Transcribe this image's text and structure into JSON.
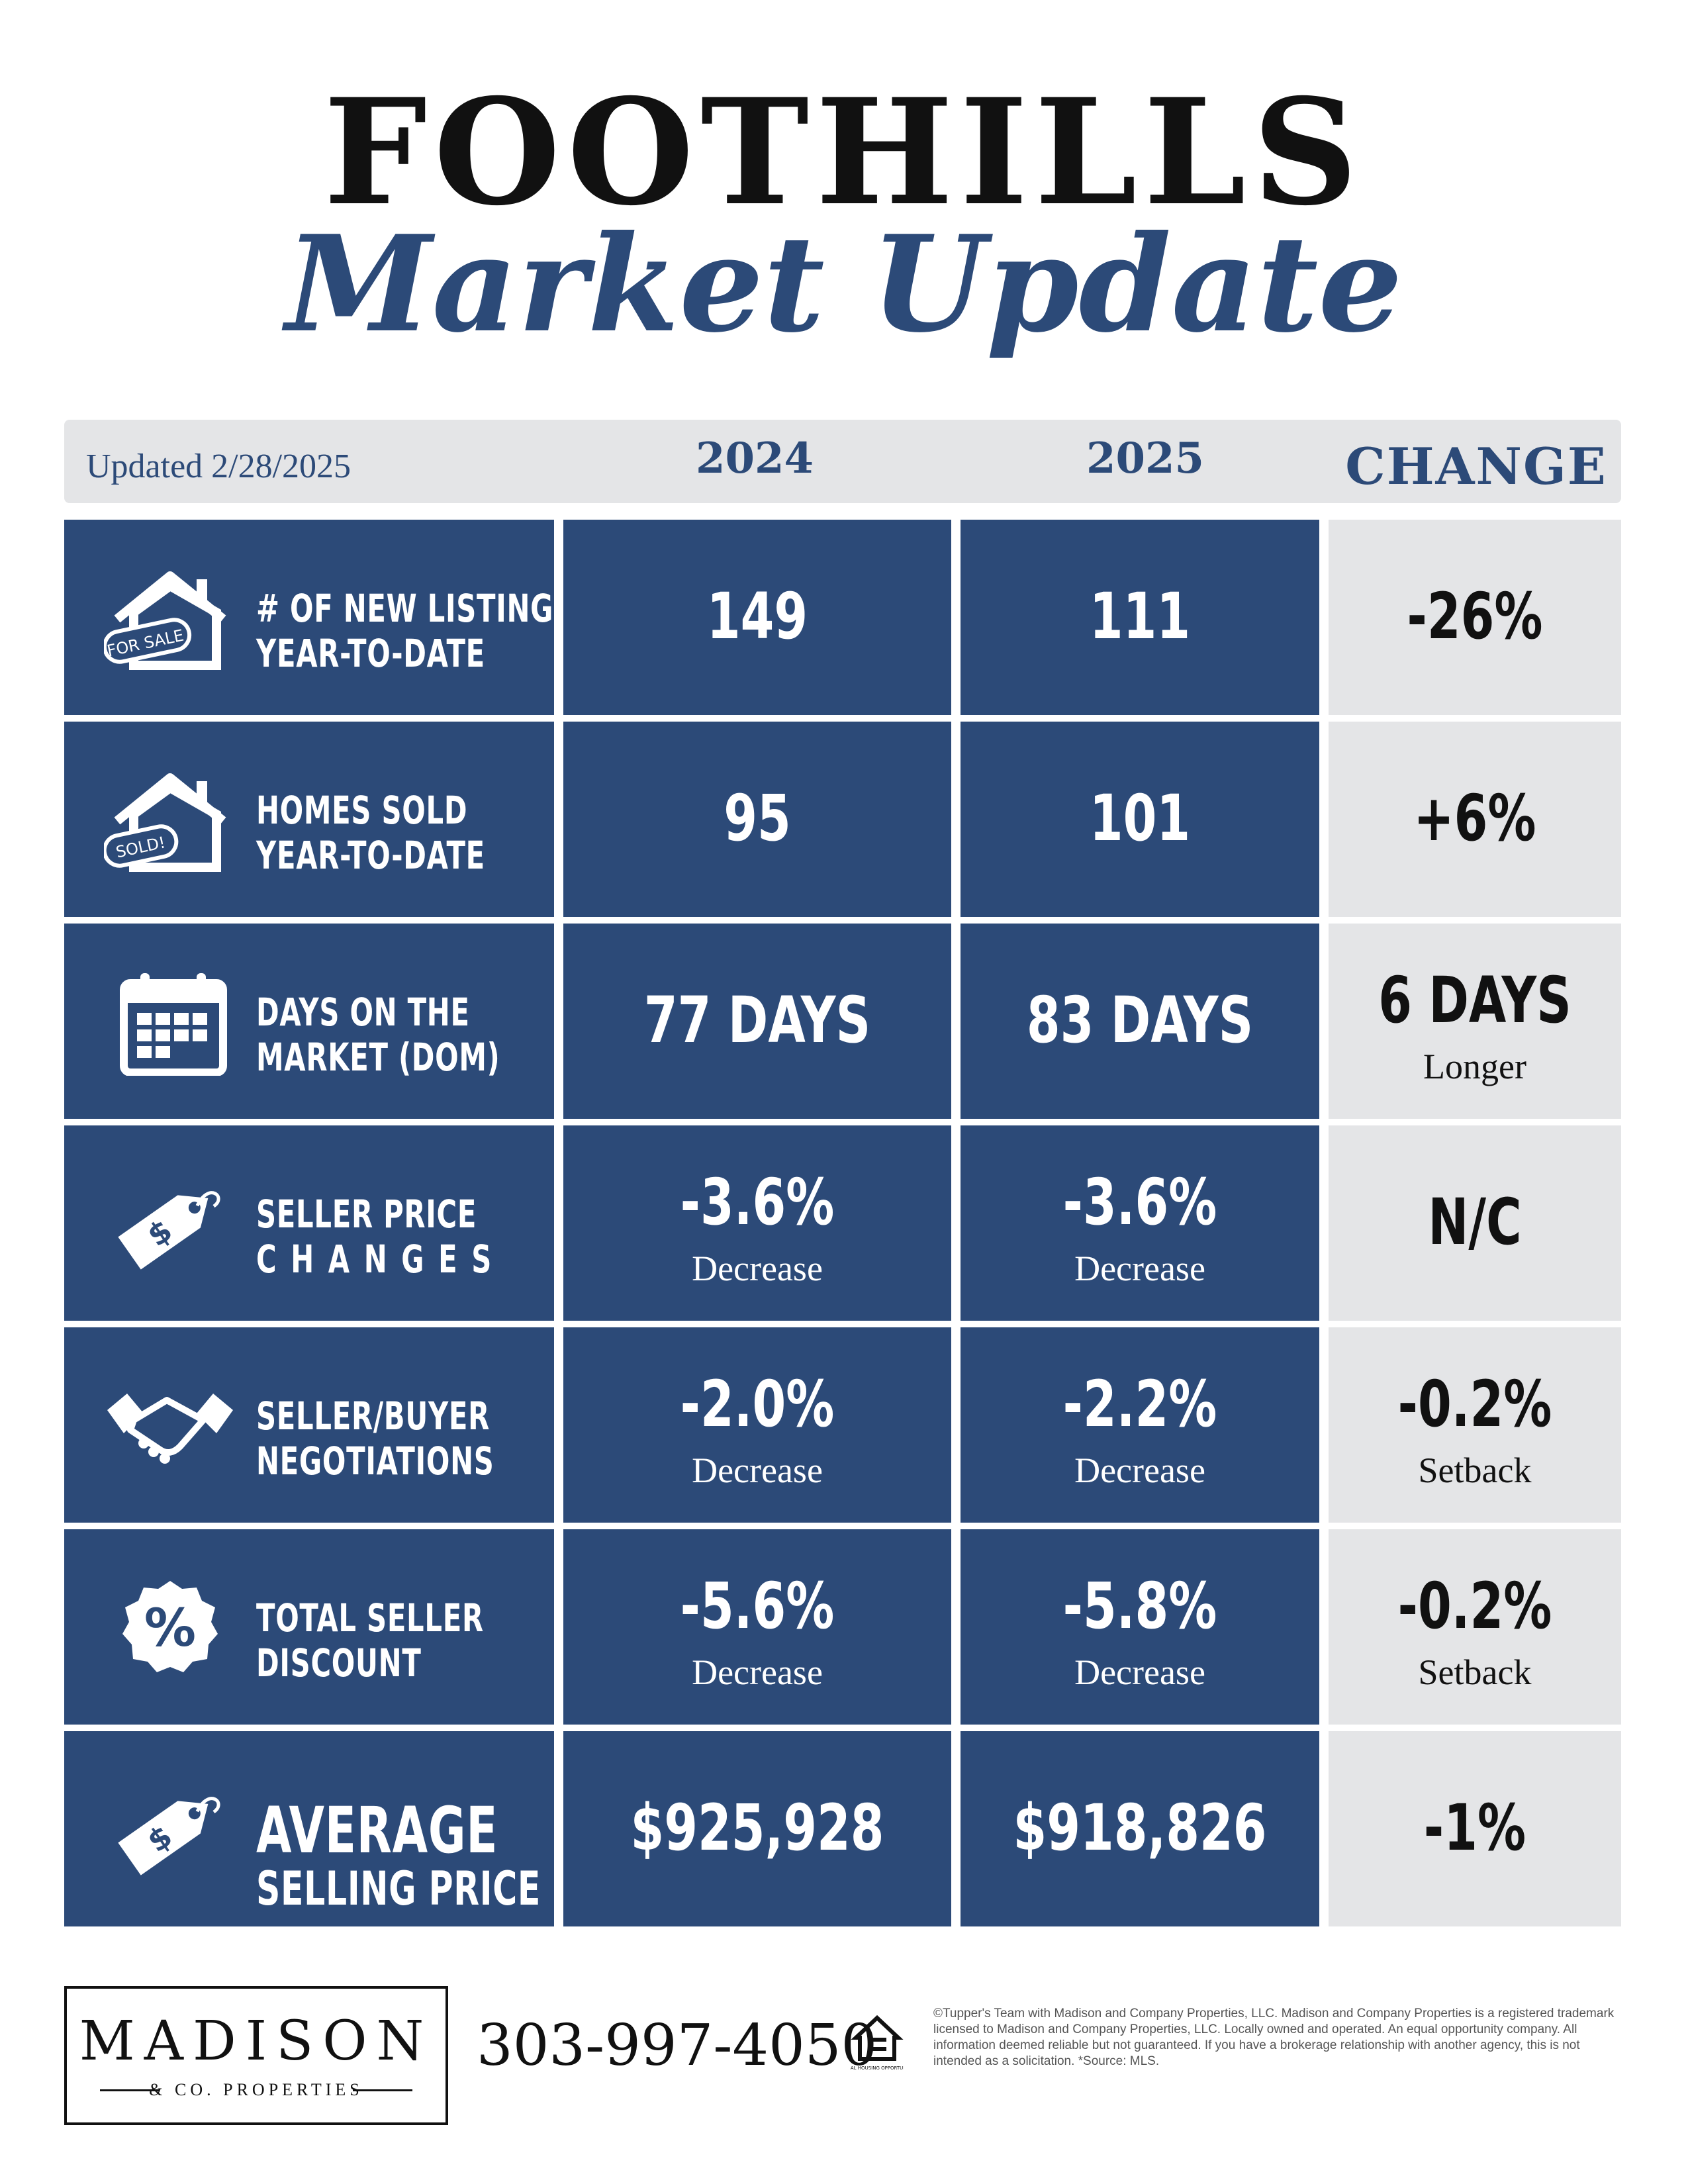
{
  "header": {
    "title_line1": "FOOTHILLS",
    "title_line2": "Market Update"
  },
  "table": {
    "updated": "Updated 2/28/2025",
    "col_2024": "2024",
    "col_2025": "2025",
    "col_change": "CHANGE",
    "rows": [
      {
        "icon": "house-for-sale-icon",
        "tag": "FOR SALE",
        "label1": "# OF NEW LISTINGS",
        "label2": "YEAR-TO-DATE",
        "v2024": "149",
        "v2024_sub": "",
        "v2025": "111",
        "v2025_sub": "",
        "change": "-26%",
        "change_sub": ""
      },
      {
        "icon": "house-sold-icon",
        "tag": "SOLD!",
        "label1": "HOMES SOLD",
        "label2": "YEAR-TO-DATE",
        "v2024": "95",
        "v2024_sub": "",
        "v2025": "101",
        "v2025_sub": "",
        "change": "+6%",
        "change_sub": ""
      },
      {
        "icon": "calendar-icon",
        "label1": "DAYS ON THE",
        "label2": "MARKET (DOM)",
        "v2024": "77 DAYS",
        "v2024_sub": "",
        "v2025": "83 DAYS",
        "v2025_sub": "",
        "change": "6 DAYS",
        "change_sub": "Longer"
      },
      {
        "icon": "price-tag-icon",
        "label1": "SELLER PRICE",
        "label2": "CHANGES",
        "v2024": "-3.6%",
        "v2024_sub": "Decrease",
        "v2025": "-3.6%",
        "v2025_sub": "Decrease",
        "change": "N/C",
        "change_sub": ""
      },
      {
        "icon": "handshake-icon",
        "label1": "SELLER/BUYER",
        "label2": "NEGOTIATIONS",
        "v2024": "-2.0%",
        "v2024_sub": "Decrease",
        "v2025": "-2.2%",
        "v2025_sub": "Decrease",
        "change": "-0.2%",
        "change_sub": "Setback"
      },
      {
        "icon": "percent-badge-icon",
        "label1": "TOTAL SELLER",
        "label2": "DISCOUNT",
        "v2024": "-5.6%",
        "v2024_sub": "Decrease",
        "v2025": "-5.8%",
        "v2025_sub": "Decrease",
        "change": "-0.2%",
        "change_sub": "Setback"
      },
      {
        "icon": "price-tag-icon",
        "label1": "AVERAGE",
        "label2": "SELLING PRICE",
        "v2024": "$925,928",
        "v2024_sub": "",
        "v2025": "$918,826",
        "v2025_sub": "",
        "change": "-1%",
        "change_sub": ""
      }
    ]
  },
  "footer": {
    "logo_main": "MADISON",
    "logo_sub": "& CO. PROPERTIES",
    "phone": "303-997-4050",
    "eho_icon": "equal-housing-opportunity-icon",
    "eho_text": "EQUAL HOUSING OPPORTUNITY",
    "disclaimer": "©Tupper's Team with Madison and Company Properties, LLC. Madison and Company Properties is a registered trademark licensed to Madison and Company Properties, LLC. Locally owned and operated. An equal opportunity company. All information deemed reliable but not guaranteed. If you have a brokerage relationship with another agency, this is not intended as a solicitation. *Source: MLS."
  },
  "colors": {
    "navy": "#2c4a78",
    "gray": "#e4e5e7",
    "text_dark": "#111111"
  }
}
